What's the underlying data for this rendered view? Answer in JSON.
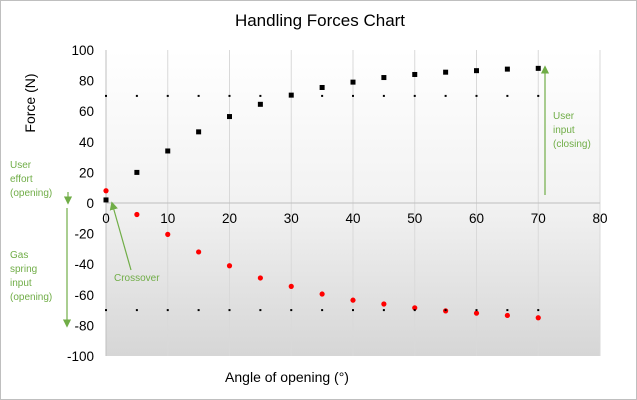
{
  "chart_data": {
    "type": "scatter",
    "title": "Handling Forces Chart",
    "xlabel": "Angle of opening (°)",
    "ylabel": "Force (N)",
    "xlim": [
      0,
      80
    ],
    "ylim": [
      -100,
      100
    ],
    "x_ticks": [
      "0",
      "10",
      "20",
      "30",
      "40",
      "50",
      "60",
      "70",
      "80"
    ],
    "y_ticks": [
      "100",
      "80",
      "60",
      "40",
      "20",
      "0",
      "-20",
      "-40",
      "-60",
      "-80",
      "-100"
    ],
    "grid": "vertical",
    "series": [
      {
        "marker": "square",
        "color": "#000000",
        "x": [
          0,
          5,
          10,
          15,
          20,
          25,
          30,
          35,
          40,
          45,
          50,
          55,
          60,
          65,
          70
        ],
        "y": [
          2,
          20,
          34,
          46.5,
          56.5,
          64.5,
          70.5,
          75.5,
          79,
          82,
          84,
          85.5,
          86.5,
          87.5,
          88
        ]
      },
      {
        "marker": "circle",
        "color": "#ff0000",
        "x": [
          0,
          5,
          10,
          15,
          20,
          25,
          30,
          35,
          40,
          45,
          50,
          55,
          60,
          65,
          70
        ],
        "y": [
          8,
          -7.5,
          -20.5,
          -32,
          -41,
          -49,
          -54.5,
          -59.5,
          -63.5,
          -66,
          -68.5,
          -70.5,
          -72,
          -73.5,
          -75
        ]
      },
      {
        "marker": "dash",
        "color": "#000000",
        "x": [
          0,
          5,
          10,
          15,
          20,
          25,
          30,
          35,
          40,
          45,
          50,
          55,
          60,
          65,
          70
        ],
        "y": [
          70,
          70,
          70,
          70,
          70,
          70,
          70,
          70,
          70,
          70,
          70,
          70,
          70,
          70,
          70
        ]
      },
      {
        "marker": "dash",
        "color": "#000000",
        "x": [
          0,
          5,
          10,
          15,
          20,
          25,
          30,
          35,
          40,
          45,
          50,
          55,
          60,
          65,
          70
        ],
        "y": [
          -70,
          -70,
          -70,
          -70,
          -70,
          -70,
          -70,
          -70,
          -70,
          -70,
          -70,
          -70,
          -70,
          -70,
          -70
        ]
      }
    ],
    "annotations": [
      {
        "lines": [
          "User",
          "effort",
          "(opening)"
        ],
        "color": "#70ad47"
      },
      {
        "lines": [
          "Gas",
          "spring",
          "input",
          "(opening)"
        ],
        "color": "#70ad47"
      },
      {
        "lines": [
          "Crossover"
        ],
        "color": "#70ad47"
      },
      {
        "lines": [
          "User",
          "input",
          "(closing)"
        ],
        "color": "#70ad47"
      }
    ]
  }
}
